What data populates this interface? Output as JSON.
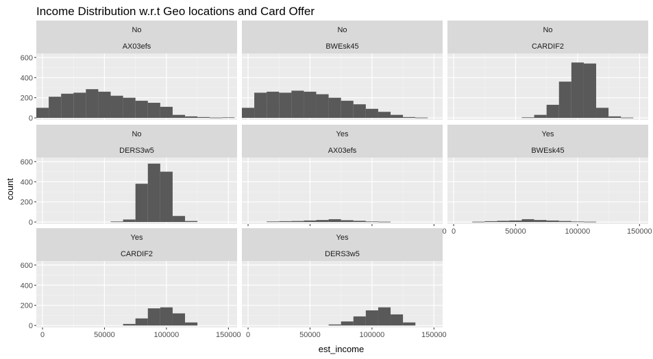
{
  "chart_data": {
    "type": "bar",
    "subtype": "faceted-histogram",
    "title": "Income Distribution w.r.t Geo locations and Card Offer",
    "xlabel": "est_income",
    "ylabel": "count",
    "xlim": [
      -5000,
      157000
    ],
    "ylim": [
      -20,
      640
    ],
    "bin_width": 10000,
    "bin_starts": [
      -5000,
      5000,
      15000,
      25000,
      35000,
      45000,
      55000,
      65000,
      75000,
      85000,
      95000,
      105000,
      115000,
      125000,
      135000,
      145000
    ],
    "x_ticks": [
      {
        "v": 0,
        "label": "0"
      },
      {
        "v": 50000,
        "label": "50000"
      },
      {
        "v": 100000,
        "label": "100000"
      },
      {
        "v": 150000,
        "label": "150000"
      }
    ],
    "y_ticks": [
      {
        "v": 0,
        "label": "0"
      },
      {
        "v": 200,
        "label": "200"
      },
      {
        "v": 400,
        "label": "400"
      },
      {
        "v": 600,
        "label": "600"
      }
    ],
    "grid": true,
    "bar_color": "#595959",
    "panel_color": "#ebebeb",
    "strip_color": "#d9d9d9",
    "panels": [
      {
        "strip": [
          "No",
          "AX03efs"
        ],
        "counts": [
          100,
          210,
          240,
          250,
          285,
          260,
          220,
          200,
          170,
          150,
          110,
          30,
          15,
          8,
          3,
          5
        ]
      },
      {
        "strip": [
          "No",
          "BWEsk45"
        ],
        "counts": [
          100,
          250,
          260,
          250,
          270,
          260,
          235,
          200,
          170,
          135,
          90,
          60,
          30,
          8,
          3,
          0
        ]
      },
      {
        "strip": [
          "No",
          "CARDIF2"
        ],
        "counts": [
          0,
          0,
          0,
          0,
          0,
          0,
          5,
          30,
          130,
          360,
          550,
          540,
          100,
          15,
          3,
          0
        ]
      },
      {
        "strip": [
          "No",
          "DERS3w5"
        ],
        "counts": [
          0,
          0,
          0,
          0,
          0,
          0,
          5,
          25,
          380,
          580,
          500,
          60,
          10,
          0,
          0,
          0
        ]
      },
      {
        "strip": [
          "Yes",
          "AX03efs"
        ],
        "counts": [
          0,
          0,
          5,
          8,
          10,
          15,
          20,
          28,
          18,
          12,
          5,
          3,
          0,
          0,
          0,
          0
        ]
      },
      {
        "strip": [
          "Yes",
          "BWEsk45"
        ],
        "counts": [
          0,
          0,
          3,
          8,
          12,
          15,
          28,
          20,
          15,
          10,
          5,
          3,
          0,
          0,
          0,
          0
        ]
      },
      {
        "strip": [
          "Yes",
          "CARDIF2"
        ],
        "counts": [
          0,
          0,
          0,
          0,
          0,
          0,
          0,
          15,
          70,
          170,
          180,
          120,
          30,
          0,
          0,
          0
        ]
      },
      {
        "strip": [
          "Yes",
          "DERS3w5"
        ],
        "counts": [
          0,
          0,
          0,
          0,
          0,
          0,
          0,
          10,
          40,
          90,
          150,
          180,
          110,
          30,
          0,
          0
        ]
      }
    ]
  }
}
